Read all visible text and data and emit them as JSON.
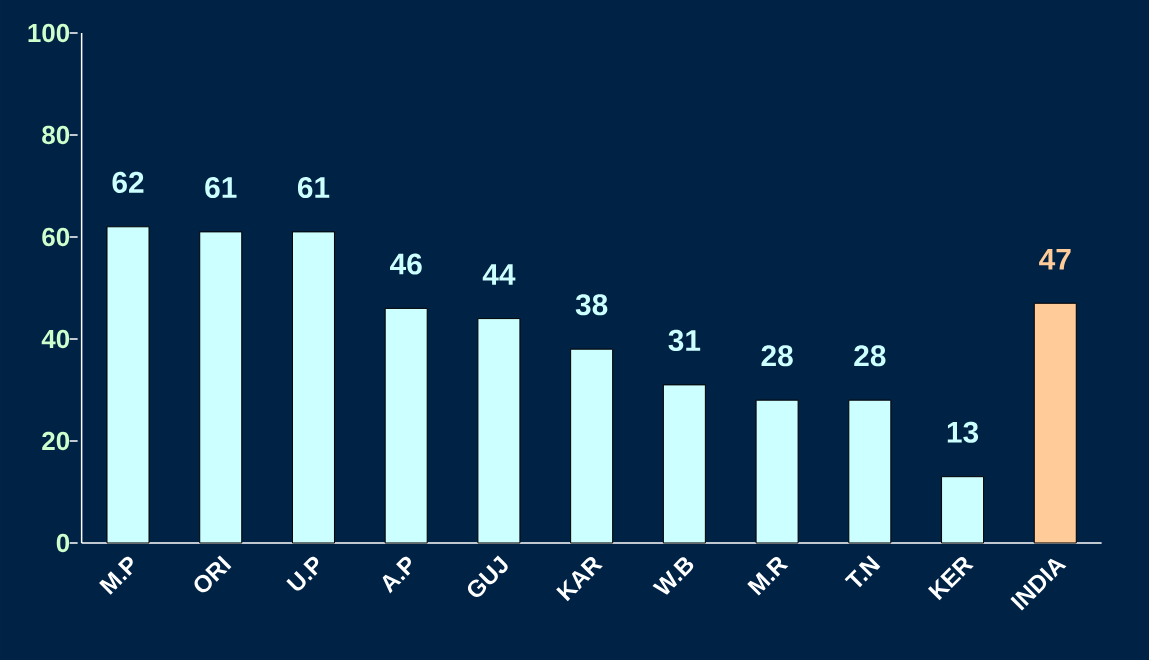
{
  "chart_data": {
    "type": "bar",
    "categories": [
      "M.P",
      "ORI",
      "U.P",
      "A.P",
      "GUJ",
      "KAR",
      "W.B",
      "M.R",
      "T.N",
      "KER",
      "INDIA"
    ],
    "values": [
      62,
      61,
      61,
      46,
      44,
      38,
      31,
      28,
      28,
      13,
      47
    ],
    "colors": [
      "#ccffff",
      "#ccffff",
      "#ccffff",
      "#ccffff",
      "#ccffff",
      "#ccffff",
      "#ccffff",
      "#ccffff",
      "#ccffff",
      "#ccffff",
      "#ffcc99"
    ],
    "ylim": [
      0,
      100
    ],
    "yticks": [
      0,
      20,
      40,
      60,
      80,
      100
    ],
    "data_labels": true,
    "grid": false
  }
}
